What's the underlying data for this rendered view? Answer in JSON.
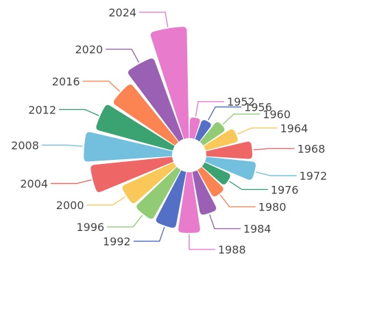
{
  "chart_data": {
    "type": "pie",
    "subtype": "nightingale-rose",
    "categories": [
      "1952",
      "1956",
      "1960",
      "1964",
      "1968",
      "1972",
      "1976",
      "1980",
      "1984",
      "1988",
      "1992",
      "1996",
      "2000",
      "2004",
      "2008",
      "2012",
      "2016",
      "2020",
      "2024"
    ],
    "values": [
      39,
      40,
      51,
      64,
      86,
      94,
      55,
      60,
      83,
      114,
      108,
      108,
      108,
      154,
      165,
      150,
      142,
      163,
      209
    ],
    "colors": [
      "#e87bcb",
      "#5470c6",
      "#91cc75",
      "#fac858",
      "#ee6666",
      "#73c0de",
      "#3ba272",
      "#fc8452",
      "#9a60b4",
      "#e87bcb",
      "#5470c6",
      "#91cc75",
      "#fac858",
      "#ee6666",
      "#73c0de",
      "#3ba272",
      "#fc8452",
      "#9a60b4",
      "#e87bcb"
    ],
    "legend": "none",
    "labels": "outside-with-leader-lines"
  }
}
